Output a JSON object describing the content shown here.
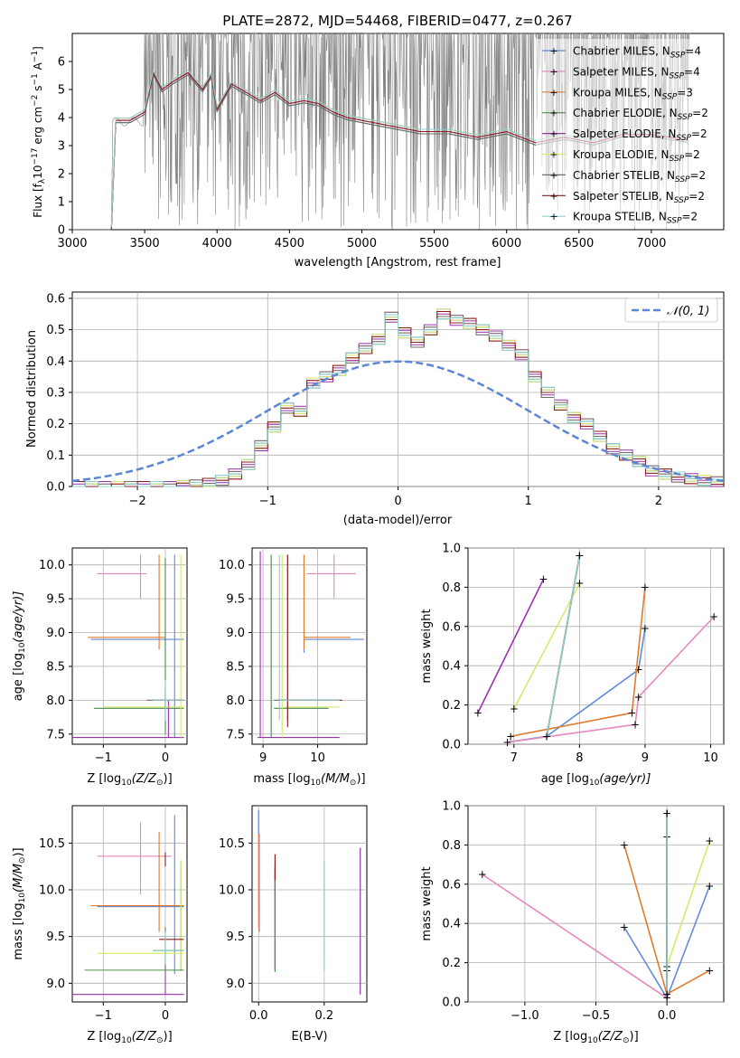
{
  "page_title": "PLATE=2872, MJD=54468, FIBERID=0477, z=0.267",
  "colors": {
    "Chabrier MILES": "#5f8bd8",
    "Salpeter MILES": "#e688bf",
    "Kroupa MILES": "#e07b2e",
    "Chabrier ELODIE": "#4c8a4c",
    "Salpeter ELODIE": "#9b2fae",
    "Kroupa ELODIE": "#d6e86a",
    "Chabrier STELIB": "#6e6e6e",
    "Salpeter STELIB": "#8c1c1c",
    "Kroupa STELIB": "#8ed0cf",
    "data": "#808080",
    "normal": "#5b86d6"
  },
  "icons": [
    "plus-marker"
  ],
  "chart_data": [
    {
      "type": "line",
      "title": "PLATE=2872, MJD=54468, FIBERID=0477, z=0.267",
      "xlabel": "wavelength [Angstrom, rest frame]",
      "ylabel_main": "Flux [f",
      "ylabel_sub": "λ",
      "ylabel_mid": "10",
      "ylabel_sup1": "−17",
      "ylabel_end": " erg cm",
      "ylabel_sup2": "−2",
      "ylabel_end2": " s",
      "ylabel_sup3": "−1",
      "ylabel_end3": " A",
      "ylabel_sup4": "−1",
      "ylabel_close": "]",
      "xlim": [
        3000,
        7500
      ],
      "ylim": [
        0,
        7
      ],
      "xticks": [
        "3000",
        "3500",
        "4000",
        "4500",
        "5000",
        "5500",
        "6000",
        "6500",
        "7000"
      ],
      "yticks": [
        "0",
        "1",
        "2",
        "3",
        "4",
        "5",
        "6"
      ],
      "legend_position": "top-right",
      "legend": [
        {
          "label": "Chabrier MILES, N",
          "sub": "SSP",
          "value": "=4"
        },
        {
          "label": "Salpeter MILES, N",
          "sub": "SSP",
          "value": "=4"
        },
        {
          "label": "Kroupa MILES, N",
          "sub": "SSP",
          "value": "=3"
        },
        {
          "label": "Chabrier ELODIE, N",
          "sub": "SSP",
          "value": "=2"
        },
        {
          "label": "Salpeter ELODIE, N",
          "sub": "SSP",
          "value": "=2"
        },
        {
          "label": "Kroupa ELODIE, N",
          "sub": "SSP",
          "value": "=2"
        },
        {
          "label": "Chabrier STELIB, N",
          "sub": "SSP",
          "value": "=2"
        },
        {
          "label": "Salpeter STELIB, N",
          "sub": "SSP",
          "value": "=2"
        },
        {
          "label": "Kroupa STELIB, N",
          "sub": "SSP",
          "value": "=2"
        }
      ],
      "model_x": [
        3270,
        3300,
        3400,
        3500,
        3560,
        3620,
        3700,
        3800,
        3900,
        3960,
        4000,
        4100,
        4200,
        4300,
        4400,
        4500,
        4600,
        4700,
        4800,
        4900,
        5000,
        5200,
        5400,
        5600,
        5800,
        6000,
        6200,
        6400,
        6600,
        6800,
        7000,
        7250
      ],
      "model_y": [
        0.0,
        3.9,
        3.9,
        4.2,
        5.6,
        5.0,
        5.3,
        5.6,
        5.0,
        5.5,
        4.3,
        5.2,
        4.9,
        4.6,
        4.9,
        4.5,
        4.6,
        4.5,
        4.2,
        4.0,
        3.9,
        3.7,
        3.5,
        3.5,
        3.3,
        3.5,
        3.1,
        3.3,
        3.1,
        3.4,
        3.4,
        3.2
      ]
    },
    {
      "type": "line",
      "xlabel": "(data-model)/error",
      "ylabel": "Normed distribution",
      "xlim": [
        -2.5,
        2.5
      ],
      "ylim": [
        0,
        0.62
      ],
      "xticks": [
        "−2",
        "−1",
        "0",
        "1",
        "2"
      ],
      "yticks": [
        "0.0",
        "0.1",
        "0.2",
        "0.3",
        "0.4",
        "0.5",
        "0.6"
      ],
      "legend": [
        {
          "label": "𝒩(0, 1)"
        }
      ],
      "legend_position": "top-right",
      "hist_bin_width": 0.1,
      "hist_start": -2.5,
      "hist_values": [
        0,
        0,
        0,
        0,
        0,
        0,
        0,
        0,
        0.003,
        0.005,
        0.01,
        0.02,
        0.04,
        0.07,
        0.13,
        0.19,
        0.25,
        0.24,
        0.33,
        0.35,
        0.37,
        0.41,
        0.44,
        0.47,
        0.54,
        0.49,
        0.46,
        0.5,
        0.55,
        0.53,
        0.52,
        0.5,
        0.48,
        0.45,
        0.42,
        0.35,
        0.3,
        0.26,
        0.22,
        0.2,
        0.16,
        0.12,
        0.1,
        0.08,
        0.05,
        0.04,
        0.03,
        0.025,
        0.02,
        0.015
      ]
    },
    {
      "type": "scatter",
      "xlabel": "Z [log",
      "xlabel_sub": "10",
      "xlabel_end": "(Z/Z",
      "xlabel_sun": "⊙",
      "xlabel_close": ")]",
      "ylabel": "age  [log",
      "ylabel_sub": "10",
      "ylabel_end": "(age/yr)]",
      "xlim": [
        -1.5,
        0.35
      ],
      "ylim": [
        7.35,
        10.25
      ],
      "xticks": [
        "−1",
        "0"
      ],
      "yticks": [
        "7.5",
        "8.0",
        "8.5",
        "9.0",
        "9.5",
        "10.0"
      ]
    },
    {
      "type": "scatter",
      "xlabel": "mass [log",
      "xlabel_sub": "10",
      "xlabel_end": "(M/M",
      "xlabel_sun": "⊙",
      "xlabel_close": ")]",
      "xlim": [
        8.8,
        10.9
      ],
      "ylim": [
        7.35,
        10.25
      ],
      "xticks": [
        "9",
        "10"
      ],
      "yticks": [
        "7.5",
        "8.0",
        "8.5",
        "9.0",
        "9.5",
        "10.0"
      ]
    },
    {
      "type": "line",
      "xlabel": "age  [log",
      "xlabel_sub": "10",
      "xlabel_end": "(age/yr)]",
      "ylabel": "mass weight",
      "xlim": [
        6.3,
        10.2
      ],
      "ylim": [
        0,
        1
      ],
      "xticks": [
        "7",
        "8",
        "9",
        "10"
      ],
      "yticks": [
        "0.0",
        "0.2",
        "0.4",
        "0.6",
        "0.8",
        "1.0"
      ],
      "series": [
        {
          "key": "Chabrier MILES",
          "x": [
            6.9,
            7.5,
            8.9,
            9.0
          ],
          "y": [
            0.01,
            0.04,
            0.38,
            0.59
          ]
        },
        {
          "key": "Salpeter MILES",
          "x": [
            6.9,
            8.85,
            8.9,
            10.05
          ],
          "y": [
            0.01,
            0.1,
            0.24,
            0.65
          ]
        },
        {
          "key": "Kroupa MILES",
          "x": [
            6.95,
            8.8,
            9.0
          ],
          "y": [
            0.04,
            0.16,
            0.8
          ]
        },
        {
          "key": "Chabrier ELODIE",
          "x": [
            7.5,
            8.0
          ],
          "y": [
            0.04,
            0.96
          ]
        },
        {
          "key": "Salpeter ELODIE",
          "x": [
            6.45,
            7.45
          ],
          "y": [
            0.16,
            0.84
          ]
        },
        {
          "key": "Kroupa ELODIE",
          "x": [
            7.0,
            8.0
          ],
          "y": [
            0.18,
            0.82
          ]
        },
        {
          "key": "Chabrier STELIB",
          "x": [
            7.5,
            8.0
          ],
          "y": [
            0.04,
            0.96
          ]
        },
        {
          "key": "Salpeter STELIB",
          "x": [
            7.5,
            8.0
          ],
          "y": [
            0.04,
            0.96
          ]
        },
        {
          "key": "Kroupa STELIB",
          "x": [
            7.5,
            8.0
          ],
          "y": [
            0.04,
            0.96
          ]
        }
      ]
    },
    {
      "type": "scatter",
      "xlabel": "Z [log",
      "xlabel_sub": "10",
      "xlabel_end": "(Z/Z",
      "xlabel_sun": "⊙",
      "xlabel_close": ")]",
      "ylabel": "mass [log",
      "ylabel_sub": "10",
      "ylabel_end": "(M/M",
      "ylabel_sun": "⊙",
      "ylabel_close": ")]",
      "xlim": [
        -1.5,
        0.35
      ],
      "ylim": [
        8.8,
        10.9
      ],
      "xticks": [
        "−1",
        "0"
      ],
      "yticks": [
        "9.0",
        "9.5",
        "10.0",
        "10.5"
      ]
    },
    {
      "type": "scatter",
      "xlabel": "E(B-V)",
      "xlim": [
        -0.02,
        0.33
      ],
      "ylim": [
        8.8,
        10.9
      ],
      "xticks": [
        "0.0",
        "0.2"
      ],
      "yticks": [
        "9.0",
        "9.5",
        "10.0",
        "10.5"
      ]
    },
    {
      "type": "line",
      "xlabel": "Z [log",
      "xlabel_sub": "10",
      "xlabel_end": "(Z/Z",
      "xlabel_sun": "⊙",
      "xlabel_close": ")]",
      "ylabel": "mass weight",
      "xlim": [
        -1.4,
        0.4
      ],
      "ylim": [
        0,
        1
      ],
      "xticks": [
        "−1.0",
        "−0.5",
        "0.0"
      ],
      "yticks": [
        "0.0",
        "0.2",
        "0.4",
        "0.6",
        "0.8",
        "1.0"
      ],
      "series": [
        {
          "key": "Chabrier MILES",
          "x": [
            -0.3,
            0.0,
            0.3
          ],
          "y": [
            0.38,
            0.02,
            0.59
          ]
        },
        {
          "key": "Salpeter MILES",
          "x": [
            -1.3,
            0.0
          ],
          "y": [
            0.65,
            0.02
          ]
        },
        {
          "key": "Kroupa MILES",
          "x": [
            -0.3,
            0.0,
            0.3
          ],
          "y": [
            0.8,
            0.04,
            0.16
          ]
        },
        {
          "key": "Chabrier ELODIE",
          "x": [
            0.0,
            0.0
          ],
          "y": [
            0.04,
            0.96
          ]
        },
        {
          "key": "Salpeter ELODIE",
          "x": [
            0.0,
            0.0
          ],
          "y": [
            0.16,
            0.84
          ]
        },
        {
          "key": "Kroupa ELODIE",
          "x": [
            0.0,
            0.3
          ],
          "y": [
            0.18,
            0.82
          ]
        },
        {
          "key": "Chabrier STELIB",
          "x": [
            0.0,
            0.0
          ],
          "y": [
            0.04,
            0.96
          ]
        },
        {
          "key": "Salpeter STELIB",
          "x": [
            0.0,
            0.0
          ],
          "y": [
            0.04,
            0.96
          ]
        },
        {
          "key": "Kroupa STELIB",
          "x": [
            0.0,
            0.0
          ],
          "y": [
            0.04,
            0.96
          ]
        }
      ]
    }
  ],
  "crosses_age_z": [
    {
      "key": "Chabrier MILES",
      "x": [
        -1.2,
        0.3
      ],
      "y": 8.9,
      "yr": [
        7.45,
        10.15
      ],
      "xv": 0.15
    },
    {
      "key": "Salpeter MILES",
      "x": [
        -1.1,
        -0.3
      ],
      "y": 9.87,
      "yr": [
        9.5,
        10.15
      ],
      "xv": -0.4
    },
    {
      "key": "Kroupa MILES",
      "x": [
        -1.25,
        0.0
      ],
      "y": 8.93,
      "yr": [
        8.75,
        10.15
      ],
      "xv": -0.1
    },
    {
      "key": "Chabrier ELODIE",
      "x": [
        -1.15,
        0.3
      ],
      "y": 7.88,
      "yr": [
        7.5,
        10.1
      ],
      "xv": 0.0
    },
    {
      "key": "Salpeter ELODIE",
      "x": [
        -1.5,
        0.3
      ],
      "y": 7.45,
      "yr": [
        7.45,
        8.0
      ],
      "xv": 0.05
    },
    {
      "key": "Kroupa ELODIE",
      "x": [
        -1.0,
        0.3
      ],
      "y": 7.9,
      "yr": [
        7.45,
        10.15
      ],
      "xv": 0.25
    },
    {
      "key": "Chabrier STELIB",
      "x": [
        -0.3,
        0.3
      ],
      "y": 8.0,
      "yr": [
        7.8,
        8.2
      ],
      "xv": 0.0
    },
    {
      "key": "Salpeter STELIB",
      "x": [
        -0.2,
        0.3
      ],
      "y": 8.0,
      "yr": [
        7.9,
        8.1
      ],
      "xv": 0.0
    },
    {
      "key": "Kroupa STELIB",
      "x": [
        -0.2,
        0.3
      ],
      "y": 8.0,
      "yr": [
        7.7,
        8.3
      ],
      "xv": 0.0
    }
  ],
  "crosses_age_mass": [
    {
      "key": "Chabrier MILES",
      "x": [
        9.75,
        10.85
      ],
      "y": 8.9,
      "yr": [
        8.7,
        10.15
      ],
      "xv": 9.75
    },
    {
      "key": "Salpeter MILES",
      "x": [
        9.8,
        10.7
      ],
      "y": 9.87,
      "yr": [
        9.5,
        10.15
      ],
      "xv": 10.3
    },
    {
      "key": "Kroupa MILES",
      "x": [
        9.75,
        10.6
      ],
      "y": 8.93,
      "yr": [
        8.75,
        10.15
      ],
      "xv": 9.75
    },
    {
      "key": "Chabrier ELODIE",
      "x": [
        9.2,
        10.2
      ],
      "y": 7.88,
      "yr": [
        7.45,
        10.15
      ],
      "xv": 9.15
    },
    {
      "key": "Salpeter ELODIE",
      "x": [
        8.9,
        10.4
      ],
      "y": 7.45,
      "yr": [
        7.45,
        10.2
      ],
      "xv": 8.95
    },
    {
      "key": "Kroupa ELODIE",
      "x": [
        9.4,
        10.4
      ],
      "y": 7.9,
      "yr": [
        7.45,
        10.15
      ],
      "xv": 9.35
    },
    {
      "key": "Chabrier STELIB",
      "x": [
        9.2,
        10.4
      ],
      "y": 8.0,
      "yr": [
        7.7,
        10.15
      ],
      "xv": 9.45
    },
    {
      "key": "Salpeter STELIB",
      "x": [
        9.3,
        10.45
      ],
      "y": 8.0,
      "yr": [
        7.6,
        10.15
      ],
      "xv": 9.45
    },
    {
      "key": "Kroupa STELIB",
      "x": [
        9.3,
        10.4
      ],
      "y": 8.0,
      "yr": [
        7.7,
        10.15
      ],
      "xv": 9.3
    }
  ],
  "crosses_mass_z": [
    {
      "key": "Chabrier MILES",
      "x": [
        -1.1,
        0.3
      ],
      "y": 9.82,
      "yr": [
        9.1,
        10.8
      ],
      "xv": 0.15
    },
    {
      "key": "Salpeter MILES",
      "x": [
        -1.1,
        0.1
      ],
      "y": 10.36,
      "yr": [
        9.95,
        10.72
      ],
      "xv": -0.4
    },
    {
      "key": "Kroupa MILES",
      "x": [
        -1.2,
        0.3
      ],
      "y": 9.83,
      "yr": [
        9.55,
        10.62
      ],
      "xv": -0.1
    },
    {
      "key": "Chabrier ELODIE",
      "x": [
        -1.3,
        0.3
      ],
      "y": 9.14,
      "yr": [
        9.14,
        10.3
      ],
      "xv": 0.25
    },
    {
      "key": "Salpeter ELODIE",
      "x": [
        -1.5,
        0.3
      ],
      "y": 8.88,
      "yr": [
        8.88,
        9.5
      ],
      "xv": 0.0
    },
    {
      "key": "Kroupa ELODIE",
      "x": [
        -1.1,
        0.3
      ],
      "y": 9.32,
      "yr": [
        9.15,
        10.32
      ],
      "xv": 0.25
    },
    {
      "key": "Chabrier STELIB",
      "x": [
        -0.2,
        0.3
      ],
      "y": 9.35,
      "yr": [
        9.1,
        9.6
      ],
      "xv": 0.0
    },
    {
      "key": "Salpeter STELIB",
      "x": [
        -0.1,
        0.3
      ],
      "y": 9.47,
      "yr": [
        10.25,
        10.4
      ],
      "xv": 0.0
    },
    {
      "key": "Kroupa STELIB",
      "x": [
        -0.2,
        0.3
      ],
      "y": 9.35,
      "yr": [
        9.2,
        9.55
      ],
      "xv": 0.0
    }
  ],
  "crosses_mass_ebv": [
    {
      "key": "Chabrier MILES",
      "y": [
        9.8,
        10.85
      ],
      "x": 0.0
    },
    {
      "key": "Salpeter MILES",
      "y": [
        9.6,
        10.6
      ],
      "x": 0.0
    },
    {
      "key": "Kroupa MILES",
      "y": [
        9.55,
        10.6
      ],
      "x": 0.002
    },
    {
      "key": "Chabrier ELODIE",
      "y": [
        9.12,
        10.25
      ],
      "x": 0.05
    },
    {
      "key": "Salpeter ELODIE",
      "y": [
        8.88,
        10.45
      ],
      "x": 0.31
    },
    {
      "key": "Kroupa ELODIE",
      "y": [
        9.3,
        10.3
      ],
      "x": 0.2
    },
    {
      "key": "Chabrier STELIB",
      "y": [
        9.15,
        10.2
      ],
      "x": 0.05
    },
    {
      "key": "Salpeter STELIB",
      "y": [
        10.1,
        10.38
      ],
      "x": 0.05
    },
    {
      "key": "Kroupa STELIB",
      "y": [
        9.13,
        10.32
      ],
      "x": 0.2
    }
  ]
}
